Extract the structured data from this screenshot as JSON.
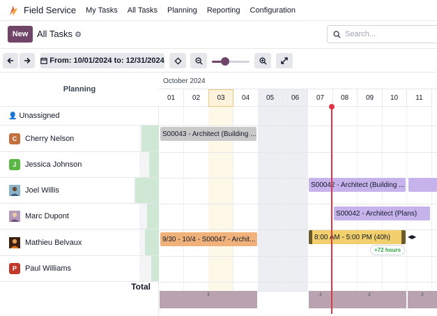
{
  "navbar": {
    "app_name": "Field Service",
    "menu": [
      "My Tasks",
      "All Tasks",
      "Planning",
      "Reporting",
      "Configuration"
    ]
  },
  "control_panel": {
    "new_label": "New",
    "breadcrumb": "All Tasks",
    "search_placeholder": "Search..."
  },
  "toolbar": {
    "date_range": "From: 10/01/2024 to: 12/31/2024",
    "zoom_level": 0.35
  },
  "gantt": {
    "row_header_title": "Planning",
    "month": "October 2024",
    "days": [
      "01",
      "02",
      "03",
      "04",
      "05",
      "06",
      "07",
      "08",
      "09",
      "10",
      "11"
    ],
    "highlighted_day": "03",
    "weekend_days": [
      "05",
      "06"
    ],
    "rows": [
      {
        "name": "Unassigned",
        "initial": "",
        "avatar_color": "",
        "icon": "user-icon",
        "progress": 0
      },
      {
        "name": "Cherry Nelson",
        "initial": "C",
        "avatar_color": "#c2703d",
        "progress": 0.9
      },
      {
        "name": "Jessica Johnson",
        "initial": "J",
        "avatar_color": "#5ab844",
        "progress": 0.5
      },
      {
        "name": "Joel Willis",
        "initial": "",
        "avatar_color": "#8ab5c9",
        "progress": 0.85
      },
      {
        "name": "Marc Dupont",
        "initial": "",
        "avatar_color": "#9b7fa6",
        "progress": 0.6
      },
      {
        "name": "Mathieu Belvaux",
        "initial": "",
        "avatar_color": "#7a3a1a",
        "progress": 0.75
      },
      {
        "name": "Paul Williams",
        "initial": "P",
        "avatar_color": "#c0392b",
        "progress": 0.4
      }
    ],
    "total_label": "Total",
    "pills": [
      {
        "label": "S00043 - Architect (Building ...",
        "color": "#c9c9c9"
      },
      {
        "label": "S00042 - Architect (Building ...",
        "color": "#c7b3ec"
      },
      {
        "label": "S00042 - Architect (Plans)",
        "color": "#c7b3ec"
      },
      {
        "label": "9/30 - 10/4 - S00047 - Archit...",
        "color": "#f0b27a"
      },
      {
        "label": "8:00 AM - 5:00 PM (40h)",
        "color": "#f1cf6c"
      }
    ],
    "overtime_badge": "+72 hours",
    "total_counts": [
      "2",
      "2",
      "2",
      "2"
    ]
  },
  "colors": {
    "brand": "#71456a",
    "today": "#dc3545"
  }
}
